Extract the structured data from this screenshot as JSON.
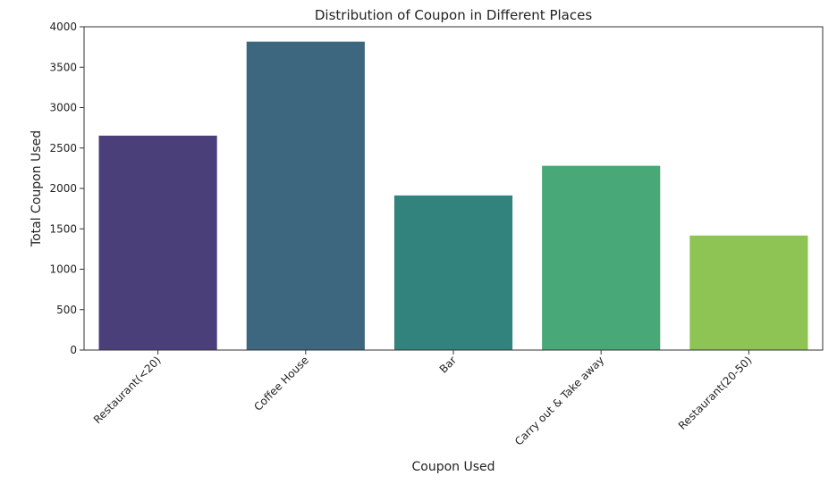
{
  "chart_data": {
    "type": "bar",
    "title": "Distribution of Coupon in Different Places",
    "xlabel": "Coupon Used",
    "ylabel": "Total Coupon Used",
    "categories": [
      "Restaurant(<20)",
      "Coffee House",
      "Bar",
      "Carry out & Take away",
      "Restaurant(20-50)"
    ],
    "values": [
      2653,
      3816,
      1913,
      2280,
      1417
    ],
    "colors": [
      "#4a3f79",
      "#3d667f",
      "#32827d",
      "#48a878",
      "#8dc454"
    ],
    "ylim": [
      0,
      4000
    ],
    "yticks": [
      0,
      500,
      1000,
      1500,
      2000,
      2500,
      3000,
      3500,
      4000
    ],
    "grid": false,
    "legend": "none"
  }
}
